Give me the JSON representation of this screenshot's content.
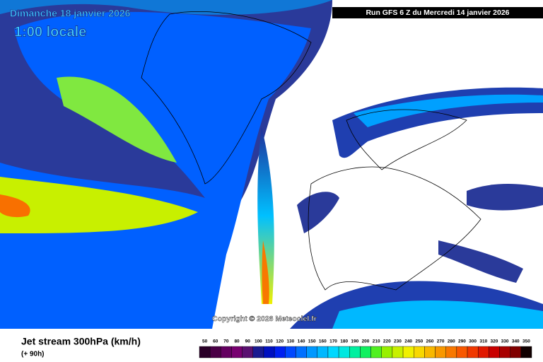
{
  "header": {
    "date": "Dimanche 18 janvier 2026",
    "time": "1:00 locale",
    "run": "Run GFS 6 Z du Mercredi 14 janvier 2026"
  },
  "copyright": "Copyright © 2026 Meteociel.fr",
  "footer": {
    "title": "Jet stream 300hPa (km/h)",
    "lead": "(+ 90h)"
  },
  "legend": {
    "values": [
      50,
      60,
      70,
      80,
      90,
      100,
      110,
      120,
      130,
      140,
      150,
      160,
      170,
      180,
      190,
      200,
      210,
      220,
      230,
      240,
      250,
      260,
      270,
      280,
      290,
      300,
      310,
      320,
      330,
      340,
      350
    ],
    "colors": [
      "#2a0028",
      "#4a0046",
      "#640060",
      "#780070",
      "#5a1070",
      "#1a1a90",
      "#0010c0",
      "#0020f0",
      "#0048ff",
      "#0070ff",
      "#0098ff",
      "#00b8ff",
      "#00d8ff",
      "#00e8e0",
      "#00f0a0",
      "#10f060",
      "#50f020",
      "#98f000",
      "#c8f000",
      "#f0f000",
      "#f8d800",
      "#f8b800",
      "#f89800",
      "#f87800",
      "#f85800",
      "#f03800",
      "#e01800",
      "#c80000",
      "#a80000",
      "#800000",
      "#100000"
    ]
  }
}
